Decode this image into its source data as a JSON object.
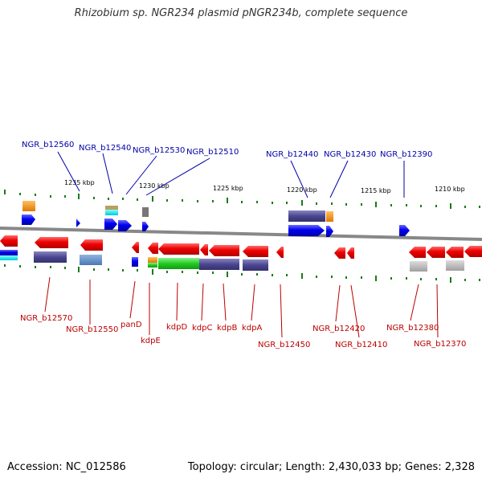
{
  "title": "Rhizobium sp. NGR234 plasmid pNGR234b, complete sequence",
  "footer": {
    "accession": "Accession: NC_012586",
    "summary": "Topology: circular; Length: 2,430,033 bp; Genes: 2,328"
  },
  "colors": {
    "forward_gene": "#0000ee",
    "reverse_gene": "#ee0000",
    "forward_label": "#0000aa",
    "reverse_label": "#bb0000",
    "backbone": "#888888",
    "tick": "#1a7a1a"
  },
  "scale_labels": [
    "1235 kbp",
    "1230 kbp",
    "1225 kbp",
    "1220 kbp",
    "1215 kbp",
    "1210 kbp"
  ],
  "forward_labels": [
    "NGR_b12560",
    "NGR_b12540",
    "NGR_b12530",
    "NGR_b12510",
    "NGR_b12440",
    "NGR_b12430",
    "NGR_b12390"
  ],
  "reverse_labels": [
    "NGR_b12570",
    "NGR_b12550",
    "panD",
    "kdpE",
    "kdpD",
    "kdpC",
    "kdpB",
    "kdpA",
    "NGR_b12450",
    "NGR_b12420",
    "NGR_b12410",
    "NGR_b12380",
    "NGR_b12370"
  ]
}
